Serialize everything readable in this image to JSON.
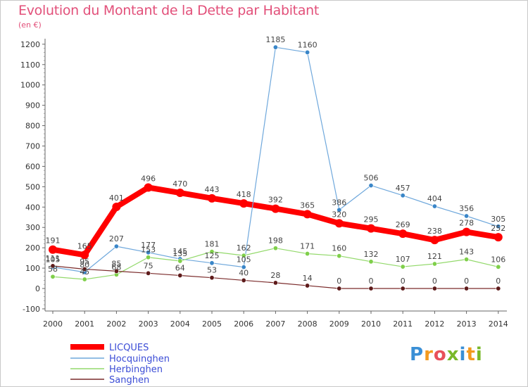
{
  "chart_data": {
    "type": "line",
    "title": "Evolution du Montant de la Dette par Habitant",
    "unit_label": "(en €)",
    "x": [
      "2000",
      "2001",
      "2002",
      "2003",
      "2004",
      "2005",
      "2006",
      "2007",
      "2008",
      "2009",
      "2010",
      "2011",
      "2012",
      "2013",
      "2014"
    ],
    "y_ticks": [
      "-100",
      "0",
      "100",
      "200",
      "300",
      "400",
      "500",
      "600",
      "700",
      "800",
      "900",
      "1000",
      "1100",
      "1200"
    ],
    "ylim": [
      -100,
      1200
    ],
    "grid": false,
    "legend_position": "bottom-left",
    "series": [
      {
        "name": "LICQUES",
        "color": "#ff0000",
        "values": [
          191,
          165,
          401,
          496,
          470,
          443,
          418,
          392,
          365,
          320,
          295,
          269,
          238,
          278,
          252
        ],
        "labels": [
          "191",
          "165",
          "401",
          "496",
          "470",
          "443",
          "418",
          "392",
          "365",
          "320",
          "295",
          "269",
          "238",
          "278",
          "252"
        ]
      },
      {
        "name": "Hocquinghen",
        "color": "#6fa8dc",
        "values": [
          105,
          80,
          207,
          177,
          145,
          125,
          105,
          1185,
          1160,
          386,
          506,
          457,
          404,
          356,
          305
        ],
        "labels": [
          "105",
          "80",
          "207",
          "177",
          "145",
          "125",
          "105",
          "1185",
          "1160",
          "386",
          "506",
          "457",
          "404",
          "356",
          "305"
        ]
      },
      {
        "name": "Herbinghen",
        "color": "#93d96b",
        "values": [
          58,
          45,
          68,
          153,
          135,
          181,
          162,
          198,
          171,
          160,
          132,
          107,
          121,
          143,
          106
        ],
        "labels": [
          "58",
          "45",
          "68",
          "153",
          "135",
          "181",
          "162",
          "198",
          "171",
          "160",
          "132",
          "107",
          "121",
          "143",
          "106"
        ]
      },
      {
        "name": "Sanghen",
        "color": "#7a2a2a",
        "values": [
          111,
          95,
          85,
          75,
          64,
          53,
          40,
          28,
          14,
          0,
          0,
          0,
          0,
          0,
          0
        ],
        "labels": [
          "111",
          "95",
          "85",
          "75",
          "64",
          "53",
          "40",
          "28",
          "14",
          "0",
          "0",
          "0",
          "0",
          "0",
          "0"
        ]
      }
    ]
  },
  "logo": {
    "letters": [
      "P",
      "r",
      "o",
      "x",
      "i",
      "t",
      "i"
    ],
    "colors": [
      "#3a8fd6",
      "#f39a1e",
      "#e8505b",
      "#79b829",
      "#3a8fd6",
      "#f39a1e",
      "#79b829"
    ]
  }
}
